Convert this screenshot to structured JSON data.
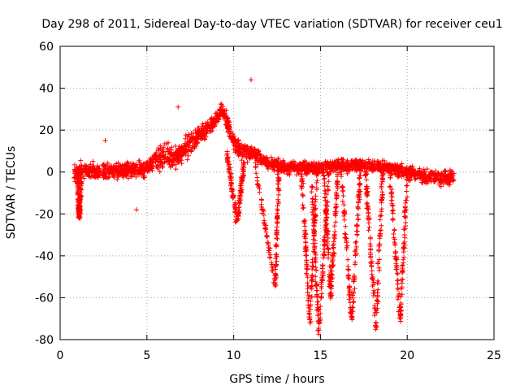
{
  "chart_data": {
    "type": "scatter",
    "title": "Day 298 of 2011, Sidereal Day-to-day VTEC variation (SDTVAR) for receiver ceu1",
    "xlabel": "GPS time / hours",
    "ylabel": "SDTVAR / TECUs",
    "xlim": [
      0,
      25
    ],
    "ylim": [
      -80,
      60
    ],
    "xticks": [
      0,
      5,
      10,
      15,
      20,
      25
    ],
    "yticks": [
      -80,
      -60,
      -40,
      -20,
      0,
      20,
      40,
      60
    ],
    "grid": true,
    "marker": "+",
    "color": "#ff0000",
    "series": [
      {
        "name": "SDTVAR",
        "description_points": "dense band of points approximated by anchor points",
        "band": {
          "x": [
            0.8,
            1.5,
            2.5,
            3.5,
            4.5,
            5.0,
            5.5,
            6.0,
            6.5,
            7.0,
            7.5,
            8.0,
            8.5,
            9.0,
            9.3,
            9.6,
            10.0,
            10.5,
            11.0,
            12.0,
            13.0,
            14.0,
            15.0,
            16.0,
            17.0,
            18.0,
            19.0,
            20.0,
            21.0,
            22.0,
            22.7
          ],
          "center": [
            0,
            1,
            0,
            1,
            1,
            2,
            6,
            8,
            6,
            8,
            14,
            18,
            20,
            25,
            30,
            25,
            14,
            10,
            9,
            4,
            2,
            2,
            2,
            3,
            3,
            3,
            2,
            0,
            -2,
            -3,
            -2
          ],
          "spread": [
            6,
            5,
            5,
            5,
            5,
            5,
            7,
            8,
            8,
            8,
            8,
            6,
            6,
            5,
            5,
            6,
            7,
            6,
            5,
            4,
            4,
            4,
            4,
            4,
            4,
            4,
            4,
            5,
            5,
            5,
            4
          ]
        },
        "dips": [
          {
            "x": [
              1.0,
              1.1,
              1.2
            ],
            "y": [
              -2,
              -22,
              -4
            ]
          },
          {
            "x": [
              9.6,
              10.2,
              10.6
            ],
            "y": [
              10,
              -24,
              5
            ]
          },
          {
            "x": [
              11.2,
              12.4,
              12.6
            ],
            "y": [
              5,
              -55,
              0
            ]
          },
          {
            "x": [
              13.9,
              14.4,
              14.8
            ],
            "y": [
              0,
              -72,
              0
            ]
          },
          {
            "x": [
              14.5,
              14.9,
              15.5
            ],
            "y": [
              -5,
              -77,
              0
            ]
          },
          {
            "x": [
              15.2,
              15.6,
              16.0
            ],
            "y": [
              0,
              -60,
              0
            ]
          },
          {
            "x": [
              16.2,
              16.8,
              17.3
            ],
            "y": [
              0,
              -72,
              0
            ]
          },
          {
            "x": [
              17.6,
              18.2,
              18.6
            ],
            "y": [
              0,
              -74,
              0
            ]
          },
          {
            "x": [
              19.0,
              19.6,
              20.0
            ],
            "y": [
              0,
              -72,
              0
            ]
          }
        ],
        "outliers": [
          {
            "x": 11.0,
            "y": 44
          },
          {
            "x": 6.8,
            "y": 31
          },
          {
            "x": 2.6,
            "y": 15
          },
          {
            "x": 4.4,
            "y": -18
          },
          {
            "x": 10.1,
            "y": -24
          },
          {
            "x": 19.7,
            "y": -53
          }
        ]
      }
    ]
  }
}
